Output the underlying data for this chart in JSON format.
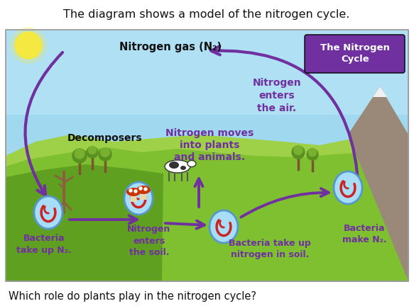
{
  "title": "The diagram shows a model of the nitrogen cycle.",
  "question": "Which role do plants play in the nitrogen cycle?",
  "title_fontsize": 11.5,
  "question_fontsize": 10.5,
  "bg_color": "#ffffff",
  "sky_color": "#a8ddf0",
  "sky_color2": "#c8eef8",
  "ground_color": "#c8a050",
  "ground_color2": "#b88a40",
  "hill1_color": "#8dc63f",
  "hill2_color": "#6aaa28",
  "hill3_color": "#a8d848",
  "box_color": "#7030a0",
  "arrow_color": "#7030a0",
  "purple_text": "#7030a0",
  "black_text": "#111111",
  "bacteria_fill": "#a8ddf8",
  "bacteria_edge": "#5599cc",
  "swirl_color": "#cc2222",
  "labels": {
    "nitrogen_gas": "Nitrogen gas (N₂)",
    "nitrogen_enters_air": "Nitrogen\nenters\nthe air.",
    "nitrogen_moves": "Nitrogen moves\ninto plants\nand animals.",
    "decomposers": "Decomposers",
    "bacteria_takeup_n2": "Bacteria\ntake up N₂.",
    "nitrogen_enters_soil": "Nitrogen\nenters\nthe soil.",
    "bacteria_takeup_soil": "Bacteria take up\nnitrogen in soil.",
    "bacteria_make": "Bacteria\nmake N₂.",
    "box": "The Nitrogen\nCycle"
  }
}
